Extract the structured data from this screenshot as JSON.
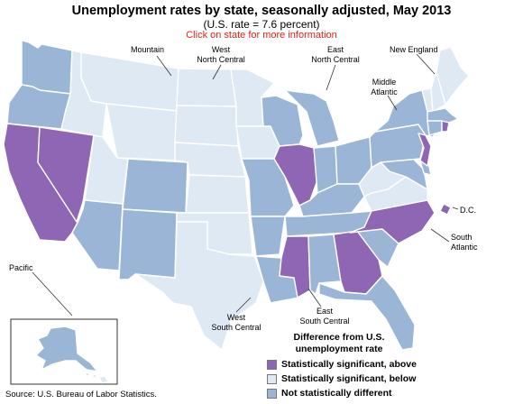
{
  "title": "Unemployment rates by state, seasonally adjusted, May 2013",
  "subtitle": "(U.S. rate = 7.6 percent)",
  "cta": "Click on state for more information",
  "regions": {
    "mountain": "Mountain",
    "wnc_line1": "West",
    "wnc_line2": "North Central",
    "enc_line1": "East",
    "enc_line2": "North Central",
    "new_england": "New England",
    "mid_atl_line1": "Middle",
    "mid_atl_line2": "Atlantic",
    "dc": "D.C.",
    "sa_line1": "South",
    "sa_line2": "Atlantic",
    "pacific": "Pacific",
    "wsc_line1": "West",
    "wsc_line2": "South Central",
    "esc_line1": "East",
    "esc_line2": "South Central"
  },
  "legend": {
    "title_line1": "Difference from U.S.",
    "title_line2": "unemployment rate",
    "above": "Statistically significant, above",
    "below": "Statistically significant, below",
    "not": "Not statistically different"
  },
  "colors": {
    "above": "#8e66b3",
    "below": "#dfe9f3",
    "not": "#9ab5d6"
  },
  "categories": {
    "above": [
      "CA",
      "NV",
      "IL",
      "MS",
      "GA",
      "NC",
      "NJ",
      "RI",
      "DC"
    ],
    "below": [
      "MT",
      "ID",
      "WY",
      "UT",
      "ND",
      "SD",
      "NE",
      "KS",
      "MN",
      "IA",
      "OK",
      "TX",
      "VA",
      "WV",
      "VT",
      "NH",
      "ME",
      "HI",
      "WI_no"
    ],
    "not": [
      "WA",
      "OR",
      "CO",
      "AZ",
      "NM",
      "MO",
      "AR",
      "LA",
      "WI",
      "MI",
      "IN",
      "OH",
      "KY",
      "TN",
      "AL",
      "SC",
      "FL",
      "PA",
      "NY",
      "MD",
      "DE",
      "CT",
      "MA",
      "AK"
    ]
  },
  "source": "Source: U.S. Bureau of Labor Statistics."
}
